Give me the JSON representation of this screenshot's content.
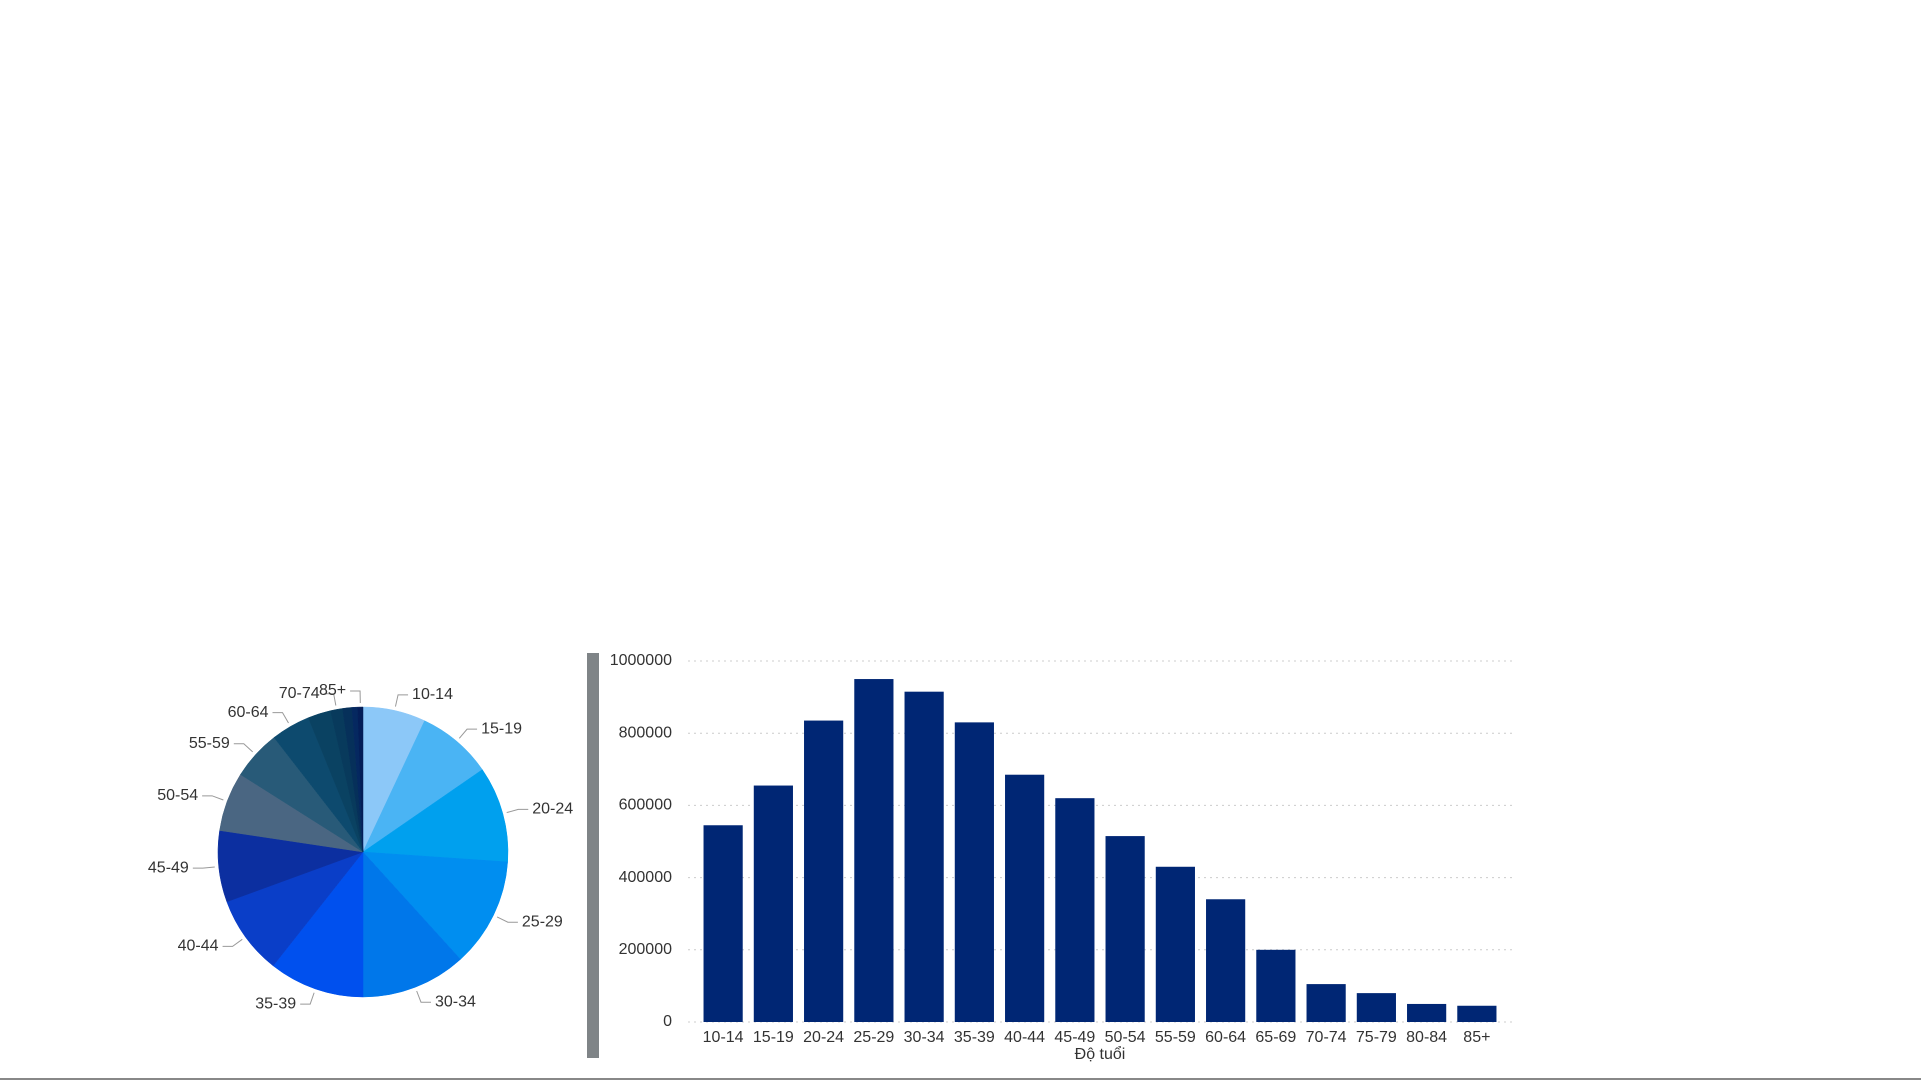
{
  "chart_data": [
    {
      "type": "pie",
      "categories": [
        "10-14",
        "15-19",
        "20-24",
        "25-29",
        "30-34",
        "35-39",
        "40-44",
        "45-49",
        "50-54",
        "55-59",
        "60-64",
        null,
        "70-74",
        null,
        null,
        "85+"
      ],
      "values": [
        545000,
        655000,
        835000,
        950000,
        915000,
        830000,
        685000,
        620000,
        515000,
        430000,
        340000,
        200000,
        105000,
        80000,
        50000,
        45000
      ],
      "colors": [
        "#8cc8f8",
        "#4ab4f4",
        "#00a0ee",
        "#008ef0",
        "#0077ea",
        "#0050ee",
        "#0a3ec8",
        "#0c2fa0",
        "#4a6682",
        "#285a78",
        "#0d4a6e",
        "#0a4262",
        "#083a5c",
        "#06305a",
        "#052860",
        "#041e58"
      ]
    },
    {
      "type": "bar",
      "categories": [
        "10-14",
        "15-19",
        "20-24",
        "25-29",
        "30-34",
        "35-39",
        "40-44",
        "45-49",
        "50-54",
        "55-59",
        "60-64",
        "65-69",
        "70-74",
        "75-79",
        "80-84",
        "85+"
      ],
      "values": [
        545000,
        655000,
        835000,
        950000,
        915000,
        830000,
        685000,
        620000,
        515000,
        430000,
        340000,
        200000,
        105000,
        80000,
        50000,
        45000
      ],
      "color": "#002674",
      "x_label": "Độ tuổi",
      "ylim": [
        0,
        1000000
      ],
      "yticks": [
        0,
        200000,
        400000,
        600000,
        800000,
        1000000
      ],
      "grid": true
    }
  ]
}
